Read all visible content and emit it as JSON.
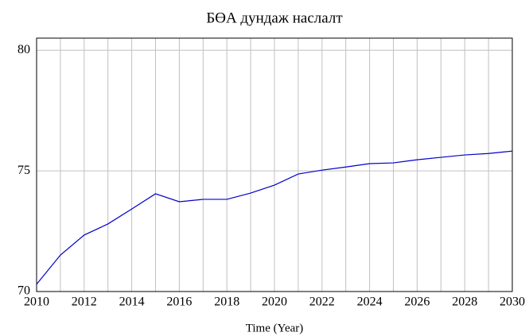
{
  "chart_data": {
    "type": "line",
    "title": "БӨА дундаж наслалт",
    "x_label": "Time (Year)",
    "x": [
      2010,
      2011,
      2012,
      2013,
      2014,
      2015,
      2016,
      2017,
      2018,
      2019,
      2020,
      2021,
      2022,
      2023,
      2024,
      2025,
      2026,
      2027,
      2028,
      2029,
      2030
    ],
    "series": [
      {
        "color": "#0000cc",
        "values": [
          70.3,
          71.51,
          72.34,
          72.8,
          73.42,
          74.05,
          73.72,
          73.82,
          73.82,
          74.08,
          74.41,
          74.87,
          75.03,
          75.16,
          75.3,
          75.33,
          75.46,
          75.56,
          75.66,
          75.72,
          75.82
        ]
      }
    ],
    "xlim": [
      2010,
      2030
    ],
    "xticks": [
      2010,
      2012,
      2014,
      2016,
      2018,
      2020,
      2022,
      2024,
      2026,
      2028,
      2030
    ],
    "xgrid": [
      2010,
      2011,
      2012,
      2013,
      2014,
      2015,
      2016,
      2017,
      2018,
      2019,
      2020,
      2021,
      2022,
      2023,
      2024,
      2025,
      2026,
      2027,
      2028,
      2029,
      2030
    ],
    "ylim": [
      70,
      80.5
    ],
    "yticks": [
      70,
      75,
      80
    ],
    "grid": true
  }
}
